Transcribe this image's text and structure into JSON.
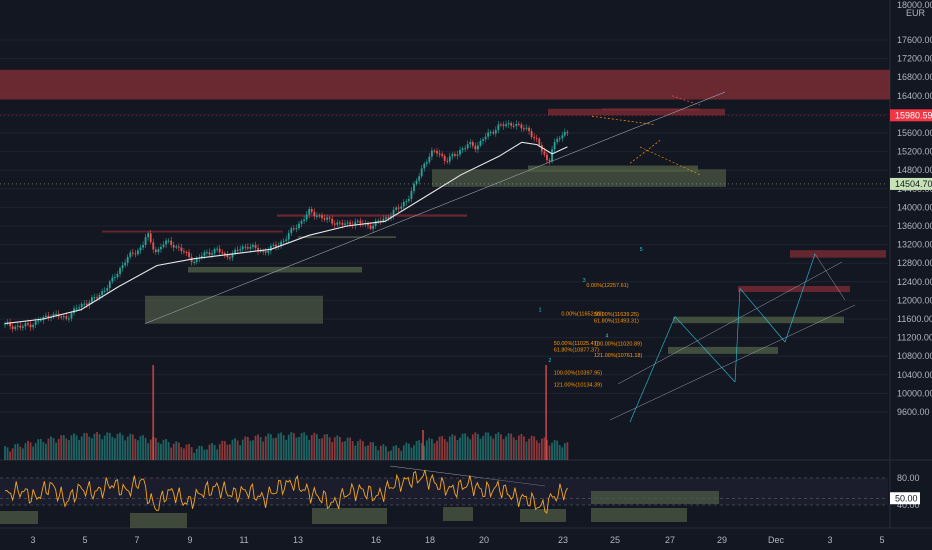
{
  "currency": "EUR",
  "top_axis_label": "18000.00",
  "price_tag_red": "15980.59",
  "price_tag_green": "14504.70",
  "rsi_tag": "50.00",
  "colors": {
    "bg": "#131722",
    "grid": "#1f2330",
    "up": "#26a69a",
    "down": "#ef5350",
    "ema": "#e8e8e8",
    "rsi": "#f5a623",
    "zone_red": "#7a2b34",
    "zone_green": "#4e5b45",
    "fib_text": "#ff9800",
    "wave": "#26c6da",
    "tag_red": "#f23645",
    "tag_green": "#c7e3b5"
  },
  "chart_data": {
    "type": "candlestick",
    "price_axis": {
      "min": 9600,
      "max": 18000,
      "ticks": [
        "17600.00",
        "17200.00",
        "16800.00",
        "16400.00",
        "16000.00",
        "15600.00",
        "15200.00",
        "14800.00",
        "14400.00",
        "14000.00",
        "13600.00",
        "13200.00",
        "12800.00",
        "12400.00",
        "12000.00",
        "11600.00",
        "11200.00",
        "10800.00",
        "10400.00",
        "10000.00",
        "9600.00"
      ]
    },
    "rsi_axis": {
      "ticks": [
        "80.00",
        "40.00"
      ],
      "level": 50
    },
    "x_ticks": [
      "3",
      "5",
      "7",
      "9",
      "11",
      "13",
      "16",
      "18",
      "20",
      "23",
      "25",
      "27",
      "29",
      "Dec",
      "3",
      "5"
    ],
    "price_path": [
      [
        0,
        11480
      ],
      [
        2,
        11420
      ],
      [
        4,
        11520
      ],
      [
        6,
        11700
      ],
      [
        8,
        11620
      ],
      [
        10,
        11900
      ],
      [
        12,
        12050
      ],
      [
        14,
        12400
      ],
      [
        16,
        12900
      ],
      [
        18,
        13150
      ],
      [
        18.7,
        13450
      ],
      [
        19.2,
        13200
      ],
      [
        20,
        13050
      ],
      [
        21,
        13250
      ],
      [
        22,
        13220
      ],
      [
        23,
        13100
      ],
      [
        24.5,
        12900
      ],
      [
        25,
        12830
      ],
      [
        26,
        12980
      ],
      [
        27,
        13050
      ],
      [
        28,
        13080
      ],
      [
        29,
        12950
      ],
      [
        30,
        13000
      ],
      [
        31,
        13120
      ],
      [
        32,
        13180
      ],
      [
        33,
        13100
      ],
      [
        34,
        13050
      ],
      [
        35,
        13120
      ],
      [
        36,
        13200
      ],
      [
        37,
        13350
      ],
      [
        38,
        13550
      ],
      [
        39,
        13700
      ],
      [
        40,
        13900
      ],
      [
        41,
        13850
      ],
      [
        42,
        13750
      ],
      [
        43,
        13700
      ],
      [
        44,
        13650
      ],
      [
        45,
        13620
      ],
      [
        46,
        13700
      ],
      [
        47,
        13640
      ],
      [
        48,
        13600
      ],
      [
        49,
        13680
      ],
      [
        50,
        13750
      ],
      [
        51,
        13900
      ],
      [
        52,
        14000
      ],
      [
        53,
        14200
      ],
      [
        54,
        14500
      ],
      [
        55,
        14900
      ],
      [
        56,
        15150
      ],
      [
        57,
        15200
      ],
      [
        58,
        15000
      ],
      [
        59,
        15100
      ],
      [
        60,
        15250
      ],
      [
        61,
        15350
      ],
      [
        62,
        15300
      ],
      [
        63,
        15500
      ],
      [
        64,
        15600
      ],
      [
        65,
        15780
      ],
      [
        66,
        15750
      ],
      [
        67,
        15820
      ],
      [
        68,
        15700
      ],
      [
        69,
        15650
      ],
      [
        70,
        15420
      ],
      [
        71,
        15100
      ],
      [
        71.5,
        14950
      ],
      [
        72,
        15300
      ],
      [
        73,
        15500
      ],
      [
        74,
        15650
      ]
    ],
    "ema_path": [
      [
        0,
        11500
      ],
      [
        5,
        11600
      ],
      [
        10,
        11800
      ],
      [
        15,
        12300
      ],
      [
        20,
        12750
      ],
      [
        25,
        12900
      ],
      [
        30,
        13000
      ],
      [
        35,
        13100
      ],
      [
        40,
        13400
      ],
      [
        45,
        13600
      ],
      [
        50,
        13700
      ],
      [
        55,
        14200
      ],
      [
        60,
        14700
      ],
      [
        65,
        15100
      ],
      [
        68,
        15400
      ],
      [
        70,
        15350
      ],
      [
        72,
        15150
      ],
      [
        74,
        15300
      ]
    ],
    "rsi_path": [
      [
        0,
        55
      ],
      [
        2,
        62
      ],
      [
        4,
        50
      ],
      [
        6,
        70
      ],
      [
        8,
        45
      ],
      [
        10,
        65
      ],
      [
        12,
        58
      ],
      [
        14,
        72
      ],
      [
        16,
        60
      ],
      [
        18,
        78
      ],
      [
        19,
        48
      ],
      [
        20,
        35
      ],
      [
        21,
        55
      ],
      [
        22,
        60
      ],
      [
        24,
        42
      ],
      [
        26,
        60
      ],
      [
        28,
        66
      ],
      [
        30,
        55
      ],
      [
        32,
        62
      ],
      [
        34,
        48
      ],
      [
        36,
        66
      ],
      [
        38,
        74
      ],
      [
        40,
        58
      ],
      [
        42,
        50
      ],
      [
        43,
        40
      ],
      [
        45,
        58
      ],
      [
        47,
        62
      ],
      [
        49,
        52
      ],
      [
        51,
        70
      ],
      [
        53,
        76
      ],
      [
        55,
        82
      ],
      [
        57,
        70
      ],
      [
        59,
        62
      ],
      [
        61,
        72
      ],
      [
        63,
        60
      ],
      [
        65,
        66
      ],
      [
        67,
        52
      ],
      [
        69,
        48
      ],
      [
        70,
        40
      ],
      [
        71,
        35
      ],
      [
        72,
        52
      ],
      [
        74,
        62
      ]
    ],
    "volume_spikes": [
      [
        19.5,
        0.95
      ],
      [
        55,
        0.3
      ],
      [
        71.2,
        0.95
      ]
    ],
    "fib_labels": [
      {
        "text": "0.00%(12257.61)",
        "x": 76.5,
        "y": 12290
      },
      {
        "text": "0.00%(11652.99)",
        "x": 73.2,
        "y": 11680
      },
      {
        "text": "50.00%(11639.25)",
        "x": 77.5,
        "y": 11660
      },
      {
        "text": "61.80%(11493.31)",
        "x": 77.5,
        "y": 11520
      },
      {
        "text": "50.00%(11025.47)",
        "x": 72.2,
        "y": 11040
      },
      {
        "text": "100.00%(11020.89)",
        "x": 77.5,
        "y": 11035
      },
      {
        "text": "61.80%(10877.37)",
        "x": 72.2,
        "y": 10900
      },
      {
        "text": "121.00%(10761.18)",
        "x": 77.5,
        "y": 10785
      },
      {
        "text": "100.00%(10397.95)",
        "x": 72.2,
        "y": 10410
      },
      {
        "text": "121.00%(10134.39)",
        "x": 72.2,
        "y": 10150
      }
    ],
    "wave_labels": [
      {
        "text": "1",
        "x": 70.2,
        "y": 11760
      },
      {
        "text": "2",
        "x": 71.5,
        "y": 10680
      },
      {
        "text": "3",
        "x": 76.0,
        "y": 12400
      },
      {
        "text": "4",
        "x": 79.0,
        "y": 11200
      },
      {
        "text": "5",
        "x": 83.5,
        "y": 13060
      }
    ]
  }
}
